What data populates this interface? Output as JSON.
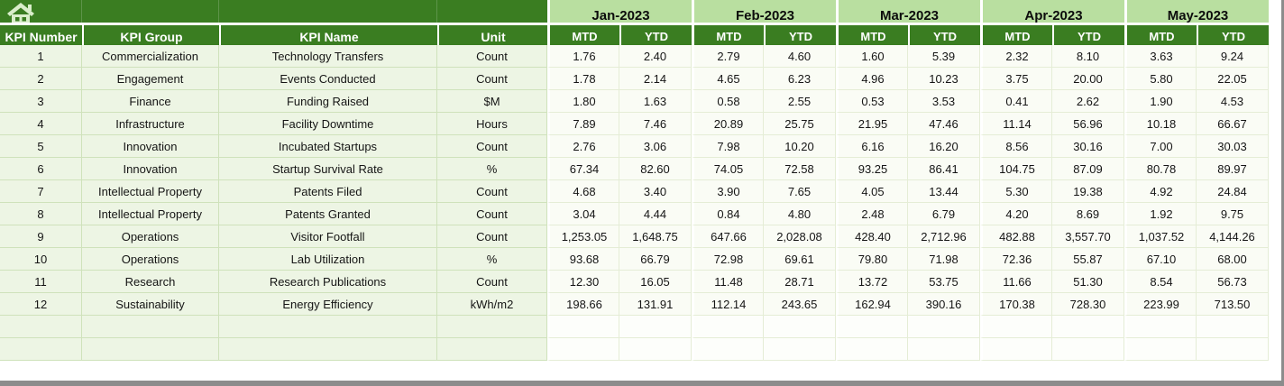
{
  "colors": {
    "dark_green": "#3a7d21",
    "light_green": "#b9dfa0",
    "left_cell_bg": "#edf5e4",
    "data_cell_bg": "#fafcf5",
    "empty_data_bg": "#fdfefb",
    "left_border": "#cfe2bb",
    "data_border": "#e5edd6",
    "frame_gray": "#8c8c8c",
    "home_icon_color": "#d9eeca"
  },
  "table": {
    "left_headers": [
      "KPI Number",
      "KPI Group",
      "KPI Name",
      "Unit"
    ],
    "months": [
      "Jan-2023",
      "Feb-2023",
      "Mar-2023",
      "Apr-2023",
      "May-2023"
    ],
    "sub_headers": [
      "MTD",
      "YTD",
      "MTD",
      "YTD",
      "MTD",
      "YTD",
      "MTD",
      "YTD",
      "MTD",
      "YTD"
    ],
    "rows": [
      {
        "number": "1",
        "group": "Commercialization",
        "name": "Technology Transfers",
        "unit": "Count",
        "values": [
          "1.76",
          "2.40",
          "2.79",
          "4.60",
          "1.60",
          "5.39",
          "2.32",
          "8.10",
          "3.63",
          "9.24"
        ]
      },
      {
        "number": "2",
        "group": "Engagement",
        "name": "Events Conducted",
        "unit": "Count",
        "values": [
          "1.78",
          "2.14",
          "4.65",
          "6.23",
          "4.96",
          "10.23",
          "3.75",
          "20.00",
          "5.80",
          "22.05"
        ]
      },
      {
        "number": "3",
        "group": "Finance",
        "name": "Funding Raised",
        "unit": "$M",
        "values": [
          "1.80",
          "1.63",
          "0.58",
          "2.55",
          "0.53",
          "3.53",
          "0.41",
          "2.62",
          "1.90",
          "4.53"
        ]
      },
      {
        "number": "4",
        "group": "Infrastructure",
        "name": "Facility Downtime",
        "unit": "Hours",
        "values": [
          "7.89",
          "7.46",
          "20.89",
          "25.75",
          "21.95",
          "47.46",
          "11.14",
          "56.96",
          "10.18",
          "66.67"
        ]
      },
      {
        "number": "5",
        "group": "Innovation",
        "name": "Incubated Startups",
        "unit": "Count",
        "values": [
          "2.76",
          "3.06",
          "7.98",
          "10.20",
          "6.16",
          "16.20",
          "8.56",
          "30.16",
          "7.00",
          "30.03"
        ]
      },
      {
        "number": "6",
        "group": "Innovation",
        "name": "Startup Survival Rate",
        "unit": "%",
        "values": [
          "67.34",
          "82.60",
          "74.05",
          "72.58",
          "93.25",
          "86.41",
          "104.75",
          "87.09",
          "80.78",
          "89.97"
        ]
      },
      {
        "number": "7",
        "group": "Intellectual Property",
        "name": "Patents Filed",
        "unit": "Count",
        "values": [
          "4.68",
          "3.40",
          "3.90",
          "7.65",
          "4.05",
          "13.44",
          "5.30",
          "19.38",
          "4.92",
          "24.84"
        ]
      },
      {
        "number": "8",
        "group": "Intellectual Property",
        "name": "Patents Granted",
        "unit": "Count",
        "values": [
          "3.04",
          "4.44",
          "0.84",
          "4.80",
          "2.48",
          "6.79",
          "4.20",
          "8.69",
          "1.92",
          "9.75"
        ]
      },
      {
        "number": "9",
        "group": "Operations",
        "name": "Visitor Footfall",
        "unit": "Count",
        "values": [
          "1,253.05",
          "1,648.75",
          "647.66",
          "2,028.08",
          "428.40",
          "2,712.96",
          "482.88",
          "3,557.70",
          "1,037.52",
          "4,144.26"
        ]
      },
      {
        "number": "10",
        "group": "Operations",
        "name": "Lab Utilization",
        "unit": "%",
        "values": [
          "93.68",
          "66.79",
          "72.98",
          "69.61",
          "79.80",
          "71.98",
          "72.36",
          "55.87",
          "67.10",
          "68.00"
        ]
      },
      {
        "number": "11",
        "group": "Research",
        "name": "Research Publications",
        "unit": "Count",
        "values": [
          "12.30",
          "16.05",
          "11.48",
          "28.71",
          "13.72",
          "53.75",
          "11.66",
          "51.30",
          "8.54",
          "56.73"
        ]
      },
      {
        "number": "12",
        "group": "Sustainability",
        "name": "Energy Efficiency",
        "unit": "kWh/m2",
        "values": [
          "198.66",
          "131.91",
          "112.14",
          "243.65",
          "162.94",
          "390.16",
          "170.38",
          "728.30",
          "223.99",
          "713.50"
        ]
      }
    ],
    "empty_row_count": 2
  }
}
